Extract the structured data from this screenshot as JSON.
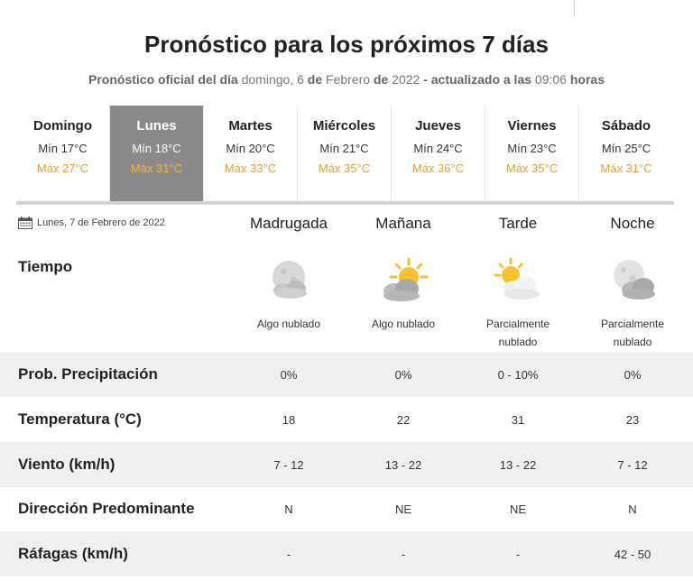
{
  "header": {
    "title": "Pronóstico para los próximos 7 días",
    "subtitle": {
      "prefix": "Pronóstico oficial del día",
      "weekday": "domingo, 6",
      "de1": "de",
      "month": "Febrero",
      "de2": "de",
      "year": "2022",
      "updated": "- actualizado a las",
      "time": "09:06",
      "horas": "horas"
    }
  },
  "days": [
    {
      "name": "Domingo",
      "min": "Mín 17°C",
      "max": "Máx 27°C"
    },
    {
      "name": "Lunes",
      "min": "Mín 18°C",
      "max": "Máx 31°C"
    },
    {
      "name": "Martes",
      "min": "Mín 20°C",
      "max": "Máx 33°C"
    },
    {
      "name": "Miércoles",
      "min": "Mín 21°C",
      "max": "Máx 35°C"
    },
    {
      "name": "Jueves",
      "min": "Mín 24°C",
      "max": "Máx 36°C"
    },
    {
      "name": "Viernes",
      "min": "Mín 23°C",
      "max": "Máx 35°C"
    },
    {
      "name": "Sábado",
      "min": "Mín 25°C",
      "max": "Máx 31°C"
    }
  ],
  "selected_day_index": 1,
  "detail": {
    "date": "Lunes, 7 de Febrero de 2022",
    "calendar_icon": "calendar-icon",
    "periods": [
      "Madrugada",
      "Mañana",
      "Tarde",
      "Noche"
    ],
    "tiempo_label": "Tiempo",
    "weather": [
      {
        "icon": "cloudy-night-icon",
        "desc_line1": "Algo nublado",
        "desc_line2": ""
      },
      {
        "icon": "sun-behind-cloud-icon",
        "desc_line1": "Algo nublado",
        "desc_line2": ""
      },
      {
        "icon": "partly-cloudy-day-icon",
        "desc_line1": "Parcialmente",
        "desc_line2": "nublado"
      },
      {
        "icon": "partly-cloudy-night-icon",
        "desc_line1": "Parcialmente",
        "desc_line2": "nublado"
      }
    ],
    "rows": [
      {
        "label": "Prob. Precipitación",
        "values": [
          "0%",
          "0%",
          "0 - 10%",
          "0%"
        ]
      },
      {
        "label": "Temperatura (°C)",
        "values": [
          "18",
          "22",
          "31",
          "23"
        ]
      },
      {
        "label": "Viento (km/h)",
        "values": [
          "7 - 12",
          "13 - 22",
          "13 - 22",
          "7 - 12"
        ]
      },
      {
        "label": "Dirección Predominante",
        "values": [
          "N",
          "NE",
          "NE",
          "N"
        ]
      },
      {
        "label": "Ráfagas (km/h)",
        "values": [
          "-",
          "-",
          "-",
          "42 - 50"
        ]
      }
    ]
  },
  "colors": {
    "max_temp": "#e0a040",
    "active_tab": "#8a8a8a",
    "row_shade": "#efefef"
  }
}
